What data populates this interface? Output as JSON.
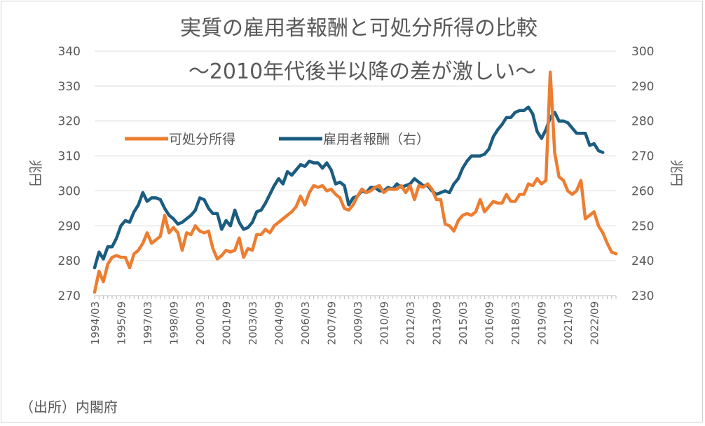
{
  "chart_data": {
    "type": "line",
    "title": "実質の雇用者報酬と可処分所得の比較",
    "subtitle": "～2010年代後半以降の差が激しい～",
    "ylabel_left": "兆円",
    "ylabel_right": "兆円",
    "ylim_left": [
      270,
      340
    ],
    "ylim_right": [
      230,
      300
    ],
    "yticks_left": [
      "340",
      "330",
      "320",
      "310",
      "300",
      "290",
      "280",
      "270"
    ],
    "yticks_right": [
      "300",
      "290",
      "280",
      "270",
      "260",
      "250",
      "240",
      "230"
    ],
    "x_start": "1994/03",
    "x_step_months": 3,
    "x_tick_labels": [
      "1994/03",
      "1995/09",
      "1997/03",
      "1998/09",
      "2000/03",
      "2001/09",
      "2003/03",
      "2004/09",
      "2006/03",
      "2007/09",
      "2009/03",
      "2010/09",
      "2012/03",
      "2013/09",
      "2015/03",
      "2016/09",
      "2018/03",
      "2019/09",
      "2021/03",
      "2022/09"
    ],
    "legend_position": "top-left",
    "source": "（出所）内閣府",
    "series": [
      {
        "name": "可処分所得",
        "axis": "left",
        "color": "#ED7D31",
        "values": [
          271,
          277,
          274,
          279,
          281,
          281.5,
          281,
          281,
          278,
          282,
          283,
          285,
          288,
          285,
          286,
          287,
          293,
          288,
          289.5,
          288,
          283,
          288,
          287.5,
          290,
          288.5,
          288,
          288.5,
          283.5,
          280.5,
          281.5,
          283,
          282.5,
          283,
          286.5,
          281,
          283.5,
          283,
          287.5,
          287.5,
          289,
          288,
          290,
          291,
          292,
          293,
          294,
          295.5,
          298.5,
          296,
          299.5,
          301.5,
          301,
          301.5,
          300,
          300.5,
          299,
          298,
          295,
          294.5,
          296,
          298.5,
          300.5,
          299.5,
          300,
          301,
          301.5,
          299.5,
          300.5,
          300.5,
          300.5,
          301.5,
          299.5,
          301.5,
          297.5,
          301.5,
          301,
          302,
          300.5,
          297.5,
          297.5,
          290.5,
          290,
          288.5,
          291.5,
          293,
          293.5,
          293,
          294,
          297.5,
          294,
          295.5,
          297,
          296.5,
          296.5,
          299,
          297,
          297,
          299,
          299,
          302,
          301.5,
          303.5,
          302,
          303,
          334,
          311,
          304,
          303,
          300,
          299,
          300,
          303,
          292,
          293,
          294,
          290,
          288,
          285,
          282.5,
          282
        ]
      },
      {
        "name": "雇用者報酬（右）",
        "axis": "right",
        "color": "#1B5C80",
        "values": [
          238,
          242.5,
          240.5,
          244,
          244,
          246.5,
          250,
          251.5,
          251,
          254,
          256,
          259.5,
          257,
          258,
          258,
          257.5,
          255,
          253,
          252,
          250.5,
          251,
          252,
          253,
          254.5,
          258,
          257.5,
          255,
          253.5,
          253.5,
          249,
          251.5,
          250,
          254.5,
          251,
          249,
          249.5,
          251,
          254,
          254.5,
          256.5,
          259,
          261.5,
          263.5,
          262,
          265.5,
          264.5,
          266,
          267.5,
          267,
          268.5,
          268,
          268,
          266.5,
          268,
          266,
          262,
          262.5,
          261.5,
          256,
          258,
          258.5,
          260,
          259.5,
          261,
          261,
          260,
          260,
          261,
          260.5,
          262,
          261,
          261.5,
          262,
          263.5,
          262.5,
          261.5,
          261.5,
          260,
          259,
          259.5,
          260,
          259.5,
          262,
          263.5,
          266.5,
          268.5,
          270,
          270,
          270,
          270.5,
          272,
          275.5,
          277.5,
          279,
          281,
          281,
          282.5,
          283,
          283,
          284,
          282,
          277,
          275,
          277.5,
          281,
          282.5,
          280,
          280,
          279.5,
          278,
          276.5,
          276.5,
          276.5,
          273,
          273.5,
          271.5,
          271
        ]
      }
    ]
  }
}
